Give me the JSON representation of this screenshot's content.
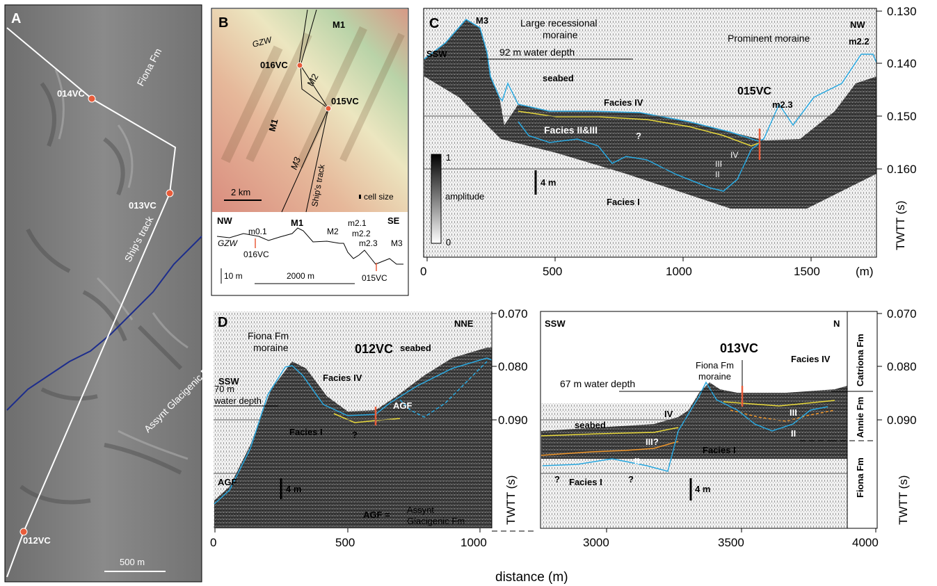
{
  "panels": {
    "a": {
      "label": "A",
      "formations": [
        "Fiona Fm",
        "Assynt Glacigenic Fm"
      ],
      "track": "Ship's track",
      "cores": [
        "014VC",
        "013VC",
        "012VC"
      ],
      "scale": "500 m"
    },
    "b": {
      "label": "B",
      "map_labels": [
        "GZW",
        "M1",
        "M2",
        "M1",
        "M3",
        "Ship's track"
      ],
      "cores": [
        "016VC",
        "015VC"
      ],
      "scale": "2 km",
      "cell": "cell size",
      "profile": {
        "nw": "NW",
        "se": "SE",
        "labels": [
          "m0.1",
          "M1",
          "M2",
          "m2.1",
          "m2.2",
          "m2.3",
          "M3",
          "GZW",
          "016VC",
          "015VC"
        ],
        "vscale": "10 m",
        "hscale": "2000 m"
      }
    },
    "c": {
      "label": "C",
      "left_dir": "SSW",
      "right_dir": "NW",
      "ann": {
        "m3": "M3",
        "recessional": [
          "Large recessional",
          "moraine"
        ],
        "depth": "92 m  water depth",
        "prominent": "Prominent moraine",
        "m22": "m2.2",
        "seabed": "seabed",
        "f4": "Facies IV",
        "f23": "Facies II&III",
        "q": "?",
        "core": "015VC",
        "m23": "m2.3",
        "iv": "IV",
        "iii": "III",
        "ii": "II",
        "f1": "Facies I",
        "bar": "4 m",
        "amp": "amplitude",
        "amp_hi": "1",
        "amp_lo": "0"
      },
      "xticks": [
        "0",
        "500",
        "1000",
        "1500",
        "(m)"
      ],
      "yticks": [
        "0.130",
        "0.140",
        "0.150",
        "0.160"
      ],
      "ylabel": "TWTT (s)"
    },
    "d": {
      "label": "D",
      "left": {
        "dirs": [
          "SSW",
          "NNE"
        ],
        "ann": {
          "fiona": [
            "Fiona Fm",
            "moraine"
          ],
          "core": "012VC",
          "seabed": "seabed",
          "depth": [
            "70 m",
            "water depth"
          ],
          "f4": "Facies IV",
          "agf": "AGF",
          "f1": "Facies I",
          "q": "?",
          "agf2": "AGF",
          "bar": "4 m",
          "key_a": "AGF =",
          "key_b": [
            "Assynt",
            "Glacigenic Fm"
          ]
        },
        "xticks": [
          "0",
          "500",
          "1000"
        ],
        "yticks": [
          "0.070",
          "0.080",
          "0.090"
        ],
        "ylabel": "TWTT (s)"
      },
      "right": {
        "dirs": [
          "SSW",
          "N"
        ],
        "ann": {
          "core": "013VC",
          "fiona": [
            "Fiona Fm",
            "moraine"
          ],
          "f4": "Facies IV",
          "depth": "67 m  water depth",
          "seabed": "seabed",
          "iv": "IV",
          "iiiq": "III?",
          "ii": "II",
          "f1": "Facies I",
          "f1b": "Facies I",
          "q1": "?",
          "q2": "?",
          "iii": "III",
          "ii2": "II",
          "bar": "4 m"
        },
        "formations": [
          "Catriona Fm",
          "Annie Fm",
          "Fiona Fm"
        ],
        "xticks": [
          "3000",
          "3500",
          "4000"
        ],
        "yticks": [
          "0.070",
          "0.080",
          "0.090"
        ],
        "ylabel": "TWTT (s)"
      },
      "xlabel": "distance (m)"
    }
  }
}
